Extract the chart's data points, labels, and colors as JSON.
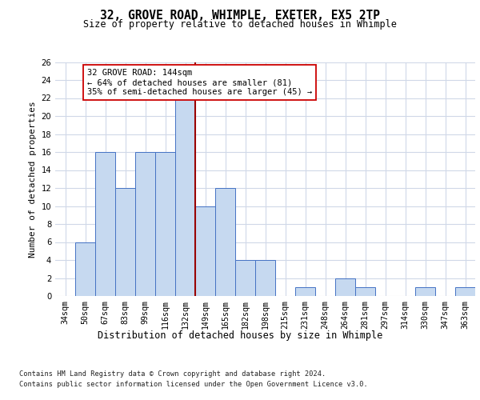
{
  "title1": "32, GROVE ROAD, WHIMPLE, EXETER, EX5 2TP",
  "title2": "Size of property relative to detached houses in Whimple",
  "xlabel": "Distribution of detached houses by size in Whimple",
  "ylabel": "Number of detached properties",
  "bar_labels": [
    "34sqm",
    "50sqm",
    "67sqm",
    "83sqm",
    "99sqm",
    "116sqm",
    "132sqm",
    "149sqm",
    "165sqm",
    "182sqm",
    "198sqm",
    "215sqm",
    "231sqm",
    "248sqm",
    "264sqm",
    "281sqm",
    "297sqm",
    "314sqm",
    "330sqm",
    "347sqm",
    "363sqm"
  ],
  "bar_values": [
    0,
    6,
    16,
    12,
    16,
    16,
    22,
    10,
    12,
    4,
    4,
    0,
    1,
    0,
    2,
    1,
    0,
    0,
    1,
    0,
    1
  ],
  "bar_color": "#c6d9f0",
  "bar_edge_color": "#4472c4",
  "reference_line_x": 6.5,
  "annotation_title": "32 GROVE ROAD: 144sqm",
  "annotation_line1": "← 64% of detached houses are smaller (81)",
  "annotation_line2": "35% of semi-detached houses are larger (45) →",
  "annotation_box_color": "#ffffff",
  "annotation_box_edge_color": "#cc0000",
  "vline_color": "#990000",
  "grid_color": "#d0d8e8",
  "background_color": "#ffffff",
  "ylim": [
    0,
    26
  ],
  "ytick_step": 2,
  "footer1": "Contains HM Land Registry data © Crown copyright and database right 2024.",
  "footer2": "Contains public sector information licensed under the Open Government Licence v3.0."
}
